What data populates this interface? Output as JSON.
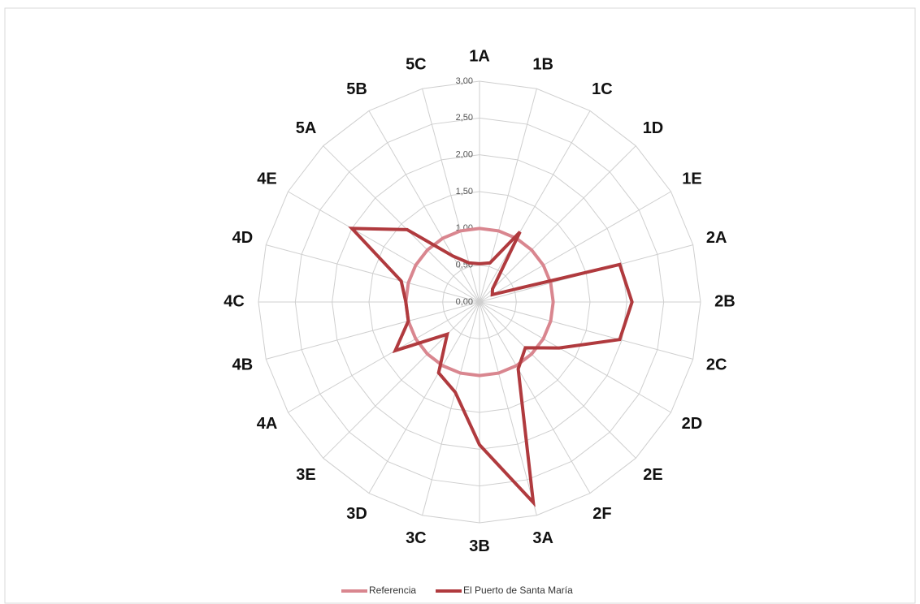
{
  "chart_data": {
    "type": "radar",
    "categories": [
      "1A",
      "1B",
      "1C",
      "1D",
      "1E",
      "2A",
      "2B",
      "2C",
      "2D",
      "2E",
      "2F",
      "3A",
      "3B",
      "3C",
      "3D",
      "3E",
      "4A",
      "4B",
      "4C",
      "4D",
      "4E",
      "5A",
      "5B",
      "5C"
    ],
    "series": [
      {
        "name": "Referencia",
        "color": "#d9868f",
        "values": [
          1,
          1,
          1,
          1,
          1,
          1,
          1,
          1,
          1,
          1,
          1,
          1,
          1,
          1,
          1,
          1,
          1,
          1,
          1,
          1,
          1,
          1,
          1,
          1
        ]
      },
      {
        "name": "El Puerto de Santa María",
        "color": "#b03a3e",
        "values": [
          0.52,
          0.55,
          1.1,
          0.25,
          0.2,
          1.97,
          2.07,
          1.97,
          1.25,
          0.88,
          1.05,
          2.82,
          1.94,
          1.27,
          1.11,
          0.62,
          1.32,
          1.0,
          1.0,
          1.1,
          2.0,
          1.39,
          0.72,
          0.55
        ]
      }
    ],
    "ylim": [
      0,
      3
    ],
    "yticks": [
      {
        "value": 0,
        "label": "0,00"
      },
      {
        "value": 0.5,
        "label": "0,50"
      },
      {
        "value": 1,
        "label": "1,00"
      },
      {
        "value": 1.5,
        "label": "1,50"
      },
      {
        "value": 2,
        "label": "2,00"
      },
      {
        "value": 2.5,
        "label": "2,50"
      },
      {
        "value": 3,
        "label": "3,00"
      }
    ],
    "grid": true,
    "legend": "bottom"
  }
}
